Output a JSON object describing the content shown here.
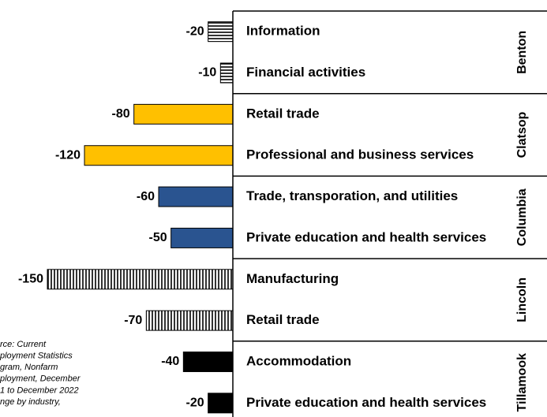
{
  "chart_data": {
    "type": "bar",
    "orientation": "horizontal",
    "xlim": [
      -150,
      0
    ],
    "groups": [
      {
        "name": "Benton",
        "pattern": "horizontal-stripes",
        "color": "#000000",
        "categories": [
          "Information",
          "Financial activities"
        ],
        "values": [
          -20,
          -10
        ]
      },
      {
        "name": "Clatsop",
        "color": "#ffc000",
        "categories": [
          "Retail trade",
          "Professional and business services"
        ],
        "values": [
          -80,
          -120
        ]
      },
      {
        "name": "Columbia",
        "color": "#2a5490",
        "categories": [
          "Trade, transporation, and utilities",
          "Private education and health services"
        ],
        "values": [
          -60,
          -50
        ]
      },
      {
        "name": "Lincoln",
        "pattern": "vertical-stripes",
        "color": "#000000",
        "categories": [
          "Manufacturing",
          "Retail trade"
        ],
        "values": [
          -150,
          -70
        ]
      },
      {
        "name": "Tillamook",
        "color": "#000000",
        "categories": [
          "Accommodation",
          "Private education and health services"
        ],
        "values": [
          -40,
          -20
        ]
      }
    ],
    "note": [
      "rce: Current",
      "ployment Statistics",
      "gram, Nonfarm",
      "ployment, December",
      "1 to December 2022",
      "nge by industry,"
    ]
  }
}
